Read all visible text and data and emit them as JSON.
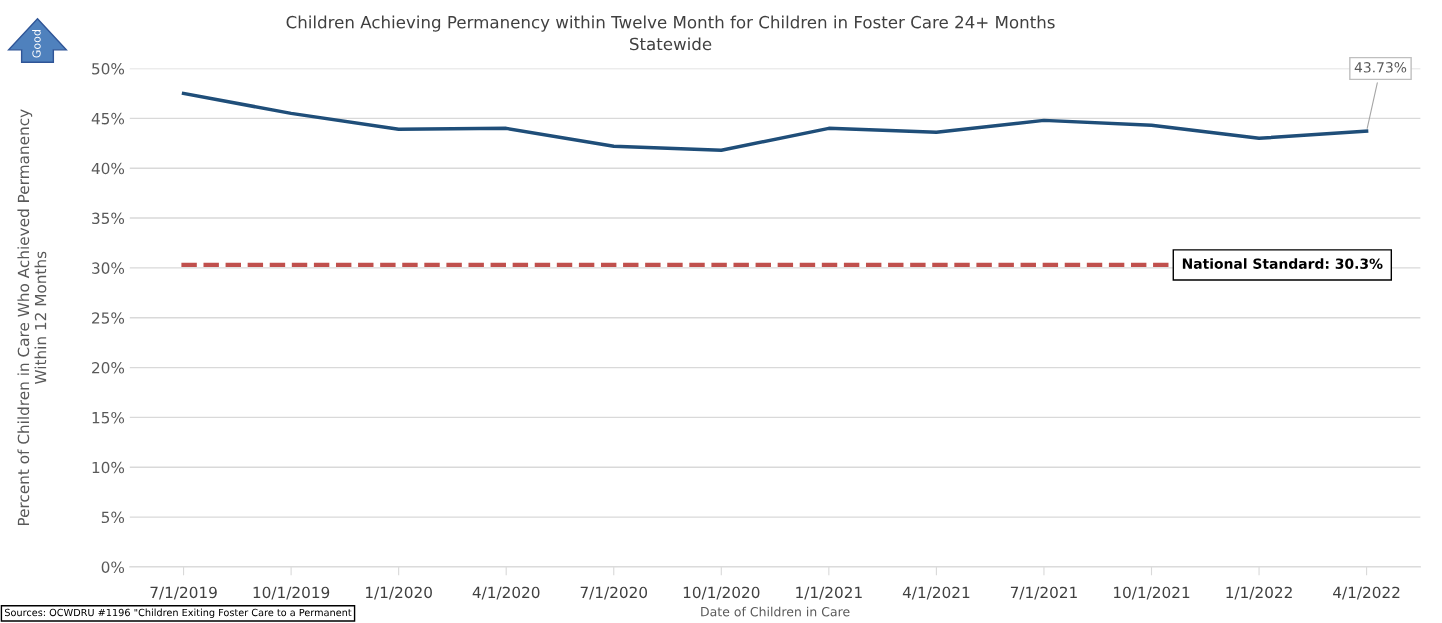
{
  "chart_data": {
    "type": "line",
    "title": "Children Achieving Permanency within Twelve Month for Children in Foster Care 24+ Months",
    "subtitle": "Statewide",
    "xlabel": "Date of Children in Care",
    "ylabel": "Percent of Children in Care Who Achieved Permanency\nWithin 12 Months",
    "categories": [
      "7/1/2019",
      "10/1/2019",
      "1/1/2020",
      "4/1/2020",
      "7/1/2020",
      "10/1/2020",
      "1/1/2021",
      "4/1/2021",
      "7/1/2021",
      "10/1/2021",
      "1/1/2022",
      "4/1/2022"
    ],
    "series": [
      {
        "color": "#1f4e79",
        "values": [
          47.5,
          45.5,
          43.9,
          44.0,
          42.2,
          41.8,
          44.0,
          43.6,
          44.8,
          44.3,
          43.0,
          43.73
        ],
        "value_labels": [
          null,
          null,
          null,
          null,
          null,
          null,
          null,
          null,
          null,
          null,
          null,
          "43.73%"
        ]
      }
    ],
    "ylim": [
      0,
      50
    ],
    "yticks": [
      {
        "value": 0,
        "label": "0%"
      },
      {
        "value": 5,
        "label": "5%"
      },
      {
        "value": 10,
        "label": "10%"
      },
      {
        "value": 15,
        "label": "15%"
      },
      {
        "value": 20,
        "label": "20%"
      },
      {
        "value": 25,
        "label": "25%"
      },
      {
        "value": 30,
        "label": "30%"
      },
      {
        "value": 35,
        "label": "35%"
      },
      {
        "value": 40,
        "label": "40%"
      },
      {
        "value": 45,
        "label": "45%"
      },
      {
        "value": 50,
        "label": "50%"
      }
    ],
    "ref_lines": [
      {
        "axis": "y",
        "value": 30.3,
        "label": "National Standard: 30.3%",
        "color": "#c0504d",
        "line_style": "dashed"
      }
    ],
    "annotations": [
      "Good",
      "Sources: OCWDRU #1196 \"Children Exiting Foster Care to a Permanent"
    ],
    "grid": "y",
    "marker": "none",
    "line_style": "solid"
  }
}
